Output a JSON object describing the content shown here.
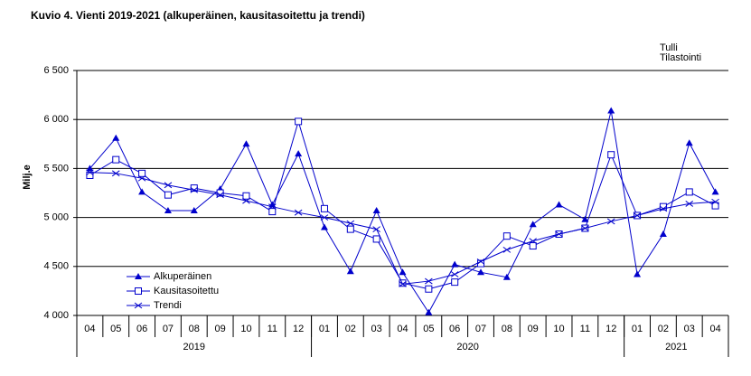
{
  "chart_data": {
    "type": "line",
    "title": "Kuvio  4. Vienti 2019-2021 (alkuperäinen, kausitasoitettu ja trendi)",
    "source": [
      "Tulli",
      "Tilastointi"
    ],
    "ylabel": "Milj.e",
    "categories": [
      "04",
      "05",
      "06",
      "07",
      "08",
      "09",
      "10",
      "11",
      "12",
      "01",
      "02",
      "03",
      "04",
      "05",
      "06",
      "07",
      "08",
      "09",
      "10",
      "11",
      "12",
      "01",
      "02",
      "03",
      "04"
    ],
    "category_groups": [
      {
        "label": "2019",
        "count": 9
      },
      {
        "label": "2020",
        "count": 12
      },
      {
        "label": "2021",
        "count": 4
      }
    ],
    "series": [
      {
        "name": "Alkuperäinen",
        "color": "#0000cc",
        "marker": "triangle",
        "values": [
          5500,
          5810,
          5260,
          5070,
          5070,
          5290,
          5750,
          5130,
          5650,
          4900,
          4450,
          5070,
          4440,
          4030,
          4520,
          4440,
          4390,
          4930,
          5130,
          4980,
          6090,
          4420,
          4830,
          5760,
          5260
        ]
      },
      {
        "name": "Kausitasoitettu",
        "color": "#0000cc",
        "marker": "square",
        "values": [
          5430,
          5590,
          5450,
          5230,
          5300,
          5250,
          5220,
          5060,
          5980,
          5090,
          4880,
          4780,
          4330,
          4270,
          4340,
          4530,
          4810,
          4710,
          4830,
          4890,
          5640,
          5020,
          5110,
          5260,
          5120
        ]
      },
      {
        "name": "Trendi",
        "color": "#0000cc",
        "marker": "cross",
        "values": [
          5460,
          5450,
          5400,
          5330,
          5280,
          5230,
          5170,
          5110,
          5050,
          5000,
          4940,
          4880,
          4320,
          4350,
          4420,
          4550,
          4670,
          4760,
          4830,
          4890,
          4960,
          5020,
          5090,
          5140,
          5160
        ]
      }
    ],
    "ylim": [
      4000,
      6500
    ],
    "yticks": [
      {
        "value": 4000,
        "label": "4 000"
      },
      {
        "value": 4500,
        "label": "4 500"
      },
      {
        "value": 5000,
        "label": "5 000"
      },
      {
        "value": 5500,
        "label": "5 500"
      },
      {
        "value": 6000,
        "label": "6 000"
      },
      {
        "value": 6500,
        "label": "6 500"
      }
    ],
    "grid": true,
    "legend": "lower-left"
  }
}
